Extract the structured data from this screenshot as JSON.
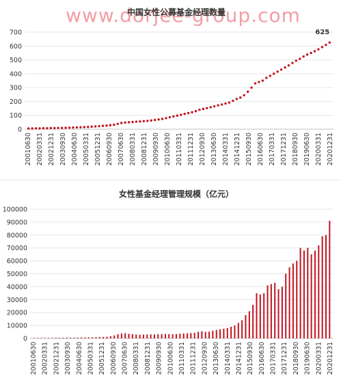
{
  "watermark": "www.dorjee-group.com",
  "watermark_color": "#e84c5a",
  "chart_data": [
    {
      "type": "scatter",
      "title": "中国女性公募基金经理数量",
      "xlabel": "",
      "ylabel": "",
      "ylim": [
        0,
        700
      ],
      "yticks": [
        0,
        100,
        200,
        300,
        400,
        500,
        600,
        700
      ],
      "color": "#c0141e",
      "x_tick_labels": [
        "20010630",
        "20020331",
        "20021231",
        "20030930",
        "20040630",
        "20050331",
        "20051231",
        "20060930",
        "20070630",
        "20080331",
        "20081231",
        "20090930",
        "20100630",
        "20110331",
        "20111231",
        "20120930",
        "20130630",
        "20140331",
        "20141231",
        "20150930",
        "20160630",
        "20170331",
        "20171231",
        "20180930",
        "20190630",
        "20200331",
        "20201231"
      ],
      "end_label": "625",
      "values": [
        5,
        5,
        6,
        6,
        7,
        7,
        8,
        8,
        9,
        9,
        10,
        11,
        12,
        13,
        14,
        15,
        16,
        18,
        20,
        22,
        24,
        26,
        29,
        32,
        38,
        45,
        48,
        50,
        52,
        54,
        56,
        58,
        60,
        63,
        66,
        70,
        74,
        80,
        86,
        92,
        98,
        104,
        110,
        116,
        122,
        130,
        140,
        146,
        152,
        158,
        165,
        172,
        178,
        185,
        192,
        205,
        218,
        228,
        245,
        270,
        300,
        330,
        340,
        350,
        370,
        385,
        400,
        415,
        430,
        445,
        460,
        478,
        494,
        508,
        524,
        538,
        550,
        562,
        576,
        592,
        608,
        625
      ]
    },
    {
      "type": "bar",
      "title": "女性基金经理管理规模（亿元）",
      "xlabel": "",
      "ylabel": "",
      "ylim": [
        0,
        100000
      ],
      "yticks": [
        0,
        10000,
        20000,
        30000,
        40000,
        50000,
        60000,
        70000,
        80000,
        90000,
        100000
      ],
      "color": "#c0141e",
      "x_tick_labels": [
        "20010630",
        "20020331",
        "20021231",
        "20030930",
        "20040630",
        "20050331",
        "20051231",
        "20060930",
        "20070630",
        "20080331",
        "20081231",
        "20090930",
        "20100630",
        "20110331",
        "20111231",
        "20120930",
        "20130630",
        "20140331",
        "20141231",
        "20150930",
        "20160630",
        "20170331",
        "20171231",
        "20180930",
        "20190630",
        "20200331",
        "20201231"
      ],
      "values": [
        300,
        300,
        350,
        350,
        400,
        400,
        450,
        450,
        500,
        500,
        550,
        550,
        600,
        650,
        700,
        750,
        800,
        900,
        1000,
        1100,
        1300,
        1700,
        2300,
        3200,
        3800,
        4000,
        3500,
        3200,
        3000,
        2800,
        2900,
        3000,
        3100,
        3000,
        3200,
        3300,
        3400,
        3300,
        3200,
        3300,
        3600,
        3800,
        3900,
        4100,
        4300,
        5000,
        5500,
        5000,
        5200,
        6000,
        6500,
        7000,
        7500,
        8000,
        9000,
        10000,
        12000,
        14000,
        18000,
        21000,
        26000,
        35000,
        34000,
        35000,
        41000,
        42000,
        43000,
        38000,
        40000,
        50000,
        55000,
        58000,
        60000,
        70000,
        68000,
        70000,
        65000,
        68000,
        72000,
        79000,
        80000,
        91000
      ]
    }
  ]
}
